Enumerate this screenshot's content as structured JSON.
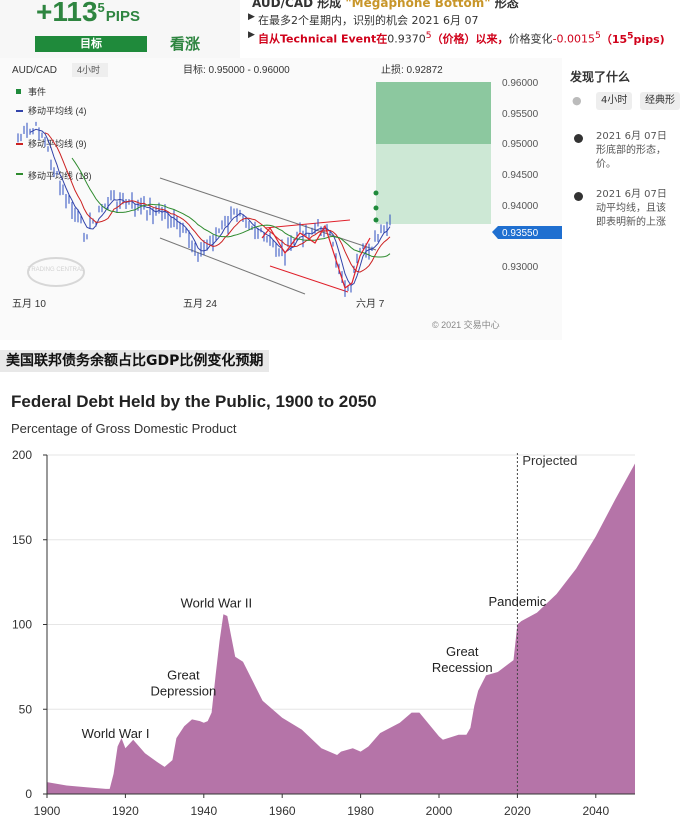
{
  "signal": {
    "pips_value": "+113",
    "pips_sup": "5",
    "pips_unit": "PIPS",
    "target_label": "目标",
    "direction": "看涨",
    "colors": {
      "green": "#1f8a3b",
      "red": "#d0021b"
    }
  },
  "info": {
    "title_prefix": "AUD/CAD 形成 ",
    "title_pattern": "\"Megaphone Bottom\"",
    "title_suffix": " 形态",
    "line1": "在最多2个星期内，识别的机会 2021 6月 07",
    "line2_a": "自从Technical Event在",
    "line2_price": "0.9370",
    "line2_price_sup": "5",
    "line2_b": "（价格）以来，",
    "line2_c": "价格变化",
    "line2_change": "-0.0015",
    "line2_change_sup": "5",
    "line2_pips": "（15",
    "line2_pips_sup": "5",
    "line2_pips_end": "pips)"
  },
  "fx_chart": {
    "symbol": "AUD/CAD",
    "timeframe": "4小时",
    "target_text": "目标: 0.95000 - 0.96000",
    "stop_text": "止损: 0.92872",
    "legend": [
      {
        "label": "事件",
        "color": "#1f8a3b"
      },
      {
        "label": "移动平均线 (4)",
        "color": "#3344aa"
      },
      {
        "label": "移动平均线 (9)",
        "color": "#cc2222"
      },
      {
        "label": "移动平均线 (18)",
        "color": "#2e8b2e"
      }
    ],
    "y_ticks": [
      "0.96000",
      "0.95500",
      "0.95000",
      "0.94500",
      "0.94000",
      "0.93500",
      "0.93000"
    ],
    "current_price": "0.93550",
    "x_ticks": [
      "五月 10",
      "五月 24",
      "六月 7"
    ],
    "watermark": "TRADING CENTRAL",
    "copyright": "© 2021 交易中心"
  },
  "side": {
    "heading": "发现了什么",
    "tags": [
      "4小时",
      "经典形"
    ],
    "events": [
      {
        "line1": "2021 6月 07日",
        "line2": "形底部的形态，",
        "line3": "价。"
      },
      {
        "line1": "2021 6月 07日",
        "line2": "动平均线，且该",
        "line3": "即表明新的上涨"
      }
    ]
  },
  "caption": "美国联邦债务余额占比GDP比例变化预期",
  "debt_chart": {
    "title": "Federal Debt Held by the Public, 1900 to 2050",
    "subtitle": "Percentage of Gross Domestic Product",
    "fill_color": "#b574a8",
    "y_ticks": [
      0,
      50,
      100,
      150,
      200
    ],
    "x_ticks": [
      1900,
      1920,
      1940,
      1960,
      1980,
      2000,
      2020,
      2040
    ],
    "projection_label": "Projected",
    "annotations": [
      {
        "label_lines": [
          "World War I"
        ],
        "year": 1918
      },
      {
        "label_lines": [
          "Great",
          "Depression"
        ],
        "year": 1933
      },
      {
        "label_lines": [
          "World War II"
        ],
        "year": 1945
      },
      {
        "label_lines": [
          "Great",
          "Recession"
        ],
        "year": 2009
      },
      {
        "label_lines": [
          "Pandemic"
        ],
        "year": 2020
      }
    ]
  },
  "chart_data": {
    "type": "area",
    "title": "Federal Debt Held by the Public, 1900 to 2050",
    "ylabel": "Percentage of Gross Domestic Product",
    "xlim": [
      1900,
      2050
    ],
    "ylim": [
      0,
      200
    ],
    "projection_start": 2020,
    "series": [
      {
        "x": [
          1900,
          1905,
          1910,
          1915,
          1916,
          1917,
          1918,
          1919,
          1920,
          1922,
          1925,
          1928,
          1930,
          1932,
          1933,
          1935,
          1937,
          1939,
          1940,
          1941,
          1942,
          1943,
          1944,
          1945,
          1946,
          1947,
          1948,
          1950,
          1955,
          1960,
          1965,
          1970,
          1974,
          1975,
          1978,
          1980,
          1982,
          1985,
          1990,
          1993,
          1995,
          2000,
          2001,
          2005,
          2007,
          2008,
          2009,
          2010,
          2012,
          2015,
          2019,
          2020,
          2021,
          2025,
          2030,
          2035,
          2040,
          2045,
          2050
        ],
        "y": [
          7,
          5,
          4,
          3,
          3,
          12,
          28,
          33,
          27,
          32,
          24,
          19,
          16,
          20,
          33,
          40,
          44,
          43,
          42,
          43,
          48,
          70,
          90,
          106,
          105,
          93,
          81,
          78,
          55,
          45,
          38,
          27,
          23,
          25,
          27,
          25,
          28,
          36,
          42,
          48,
          48,
          34,
          32,
          35,
          35,
          39,
          52,
          61,
          70,
          72,
          79,
          100,
          102,
          107,
          118,
          133,
          152,
          174,
          195
        ]
      }
    ]
  }
}
